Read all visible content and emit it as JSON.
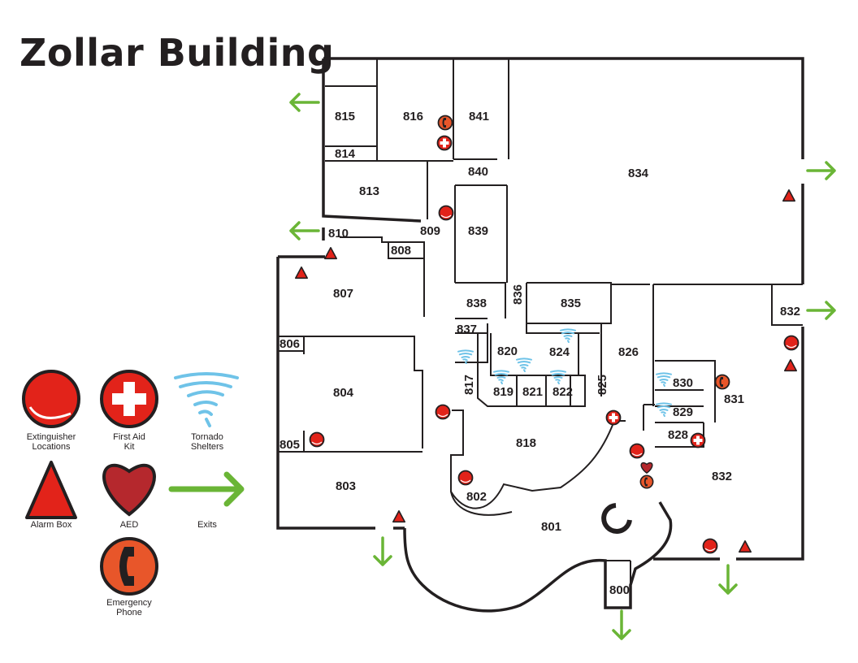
{
  "title": "Zollar Building",
  "rooms": [
    "815",
    "816",
    "841",
    "814",
    "813",
    "840",
    "834",
    "839",
    "809",
    "810",
    "808",
    "807",
    "836",
    "835",
    "832",
    "838",
    "837",
    "806",
    "820",
    "824",
    "826",
    "804",
    "817",
    "819",
    "821",
    "822",
    "825",
    "830",
    "831",
    "829",
    "828",
    "818",
    "805",
    "803",
    "802",
    "801",
    "800"
  ],
  "legend": {
    "extinguisher": "Extinguisher\nLocations",
    "first_aid": "First Aid\nKit",
    "tornado": "Tornado\nShelters",
    "alarm": "Alarm Box",
    "aed": "AED",
    "exits": "Exits",
    "phone": "Emergency\nPhone"
  },
  "colors": {
    "extinguisher": "#e2231a",
    "alarm": "#e2231a",
    "aed": "#b5282d",
    "phone": "#e8562a",
    "tornado": "#6fc3e8",
    "exit": "#6ab536",
    "wall": "#231f20"
  },
  "icons": {
    "extinguisher": "extinguisher-icon",
    "first_aid": "first-aid-icon",
    "tornado": "tornado-icon",
    "alarm": "alarm-box-icon",
    "aed": "aed-icon",
    "phone": "emergency-phone-icon",
    "exit": "exit-arrow-icon",
    "elevator": "elevator-icon"
  }
}
